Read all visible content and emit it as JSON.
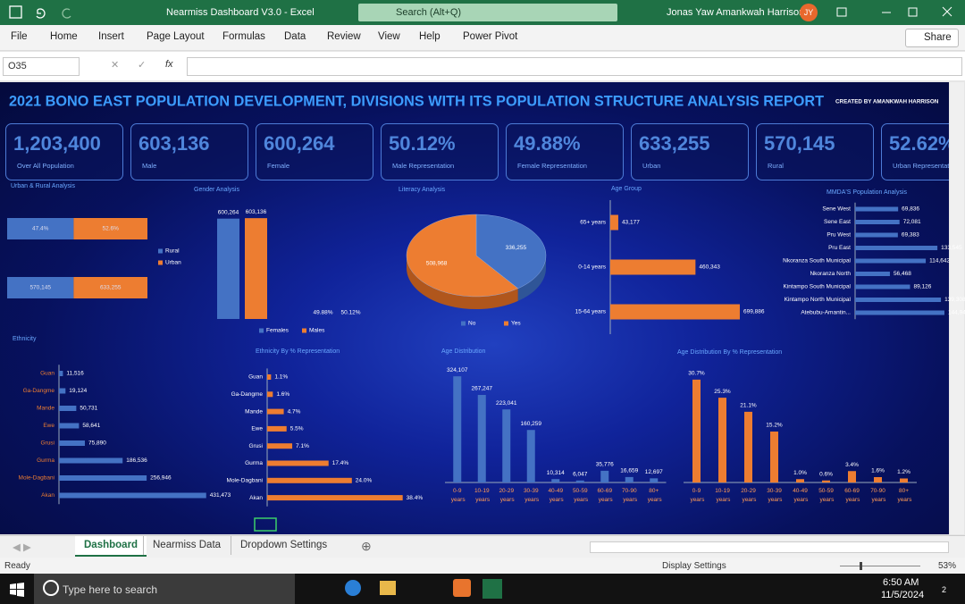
{
  "window": {
    "title": "Nearmiss Dashboard V3.0  -  Excel",
    "search": "Search (Alt+Q)",
    "user": "Jonas Yaw Amankwah Harrison",
    "initials": "JY"
  },
  "ribbon": {
    "tabs": [
      "File",
      "Home",
      "Insert",
      "Page Layout",
      "Formulas",
      "Data",
      "Review",
      "View",
      "Help",
      "Power Pivot"
    ],
    "share": "Share"
  },
  "formula_bar": {
    "name_box": "O35",
    "fx": "fx"
  },
  "dashboard": {
    "title": "2021 BONO EAST POPULATION DEVELOPMENT, DIVISIONS WITH ITS POPULATION STRUCTURE ANALYSIS REPORT",
    "credit": "CREATED BY AMANKWAH HARRISON",
    "kpis": [
      {
        "value": "1,203,400",
        "label": "Over All Population"
      },
      {
        "value": "603,136",
        "label": "Male"
      },
      {
        "value": "600,264",
        "label": "Female"
      },
      {
        "value": "50.12%",
        "label": "Male Representation"
      },
      {
        "value": "49.88%",
        "label": "Female Representation"
      },
      {
        "value": "633,255",
        "label": "Urban"
      },
      {
        "value": "570,145",
        "label": "Rural"
      },
      {
        "value": "52.62%",
        "label": "Urban  Representation"
      }
    ]
  },
  "chart_data": [
    {
      "type": "stacked_bar",
      "title": "Urban & Rural Analysis",
      "categories": [
        null,
        null
      ],
      "series": [
        {
          "name": "Rural",
          "color": "#4472c4",
          "values": [
            47.4,
            570145
          ],
          "value_labels": [
            "47.4%",
            "570,145"
          ]
        },
        {
          "name": "Urban",
          "color": "#ed7d31",
          "values": [
            52.6,
            633255
          ],
          "value_labels": [
            "52.6%",
            "633,255"
          ]
        }
      ]
    },
    {
      "type": "column",
      "title": "Gender Analysis",
      "categories": [
        null,
        null
      ],
      "ylim": [
        0,
        620000
      ],
      "series": [
        {
          "name": "Females",
          "color": "#4472c4",
          "values": [
            600264,
            49.88
          ],
          "value_labels": [
            "600,264",
            "49.88%"
          ]
        },
        {
          "name": "Males",
          "color": "#ed7d31",
          "values": [
            603136,
            50.12
          ],
          "value_labels": [
            "603,136",
            "50.12%"
          ]
        }
      ]
    },
    {
      "type": "pie",
      "title": "Literacy Analysis",
      "categories": [
        "No",
        "Yes"
      ],
      "values": [
        336255,
        508968
      ],
      "value_labels": [
        "336,255",
        "508,968"
      ],
      "colors": [
        "#4472c4",
        "#ed7d31"
      ]
    },
    {
      "type": "bar",
      "title": "Age Group",
      "categories": [
        "65+ years",
        "0-14 years",
        "15-64 years"
      ],
      "values": [
        43177,
        460343,
        699886
      ],
      "value_labels": [
        "43,177",
        "460,343",
        "699,886"
      ],
      "color": "#ed7d31",
      "xlim": [
        0,
        700000
      ]
    },
    {
      "type": "bar",
      "title": "MMDA'S Population Analysis",
      "categories": [
        "Sene West",
        "Sene East",
        "Pru West",
        "Pru East",
        "Nkoranza South Municipal",
        "Nkoranza North",
        "Kintampo South Municipal",
        "Kintampo North Municipal",
        "Atebubu-Amantin..."
      ],
      "values": [
        69836,
        72081,
        69383,
        133545,
        114642,
        56468,
        89126,
        139308,
        144947
      ],
      "value_labels": [
        "69,836",
        "72,081",
        "69,383",
        "133,545",
        "114,642",
        "56,468",
        "89,126",
        "139,308",
        "144,947"
      ],
      "color": "#4472c4",
      "xlim": [
        0,
        145000
      ]
    },
    {
      "type": "bar",
      "title": "Ethnicity",
      "categories": [
        "Guan",
        "Ga-Dangme",
        "Mande",
        "Ewe",
        "Grusi",
        "Gurma",
        "Mole-Dagbani",
        "Akan"
      ],
      "values": [
        11516,
        19124,
        50731,
        58641,
        75890,
        186536,
        256946,
        431473
      ],
      "value_labels": [
        "11,516",
        "19,124",
        "50,731",
        "58,641",
        "75,890",
        "186,536",
        "256,946",
        "431,473"
      ],
      "color": "#4472c4",
      "xlim": [
        0,
        440000
      ]
    },
    {
      "type": "bar",
      "title": "Ethnicity By % Representation",
      "categories": [
        "Guan",
        "Ga-Dangme",
        "Mande",
        "Ewe",
        "Grusi",
        "Gurma",
        "Mole-Dagbani",
        "Akan"
      ],
      "values": [
        1.1,
        1.6,
        4.7,
        5.5,
        7.1,
        17.4,
        24.0,
        38.4
      ],
      "value_labels": [
        "1.1%",
        "1.6%",
        "4.7%",
        "5.5%",
        "7.1%",
        "17.4%",
        "24.0%",
        "38.4%"
      ],
      "color": "#ed7d31",
      "xlim": [
        0,
        40
      ]
    },
    {
      "type": "column",
      "title": "Age Distribution",
      "categories": [
        "0-9 years",
        "10-19 years",
        "20-29 years",
        "30-39 years",
        "40-49 years",
        "50-59 years",
        "60-69 years",
        "70-90 years",
        "80+ years"
      ],
      "values": [
        324107,
        267247,
        223041,
        160259,
        10314,
        6047,
        35776,
        16659,
        12697
      ],
      "value_labels": [
        "324,107",
        "267,247",
        "223,041",
        "160,259",
        "10,314",
        "6,047",
        "35,776",
        "16,659",
        "12,697"
      ],
      "color": "#4472c4",
      "ylim": [
        0,
        330000
      ]
    },
    {
      "type": "column",
      "title": "Age Distribution By % Representation",
      "categories": [
        "0-9 years",
        "10-19 years",
        "20-29 years",
        "30-39 years",
        "40-49 years",
        "50-59 years",
        "60-69 years",
        "70-90 years",
        "80+ years"
      ],
      "values": [
        30.7,
        25.3,
        21.1,
        15.2,
        1.0,
        0.6,
        3.4,
        1.6,
        1.2
      ],
      "value_labels": [
        "30.7%",
        "25.3%",
        "21.1%",
        "15.2%",
        "1.0%",
        "0.6%",
        "3.4%",
        "1.6%",
        "1.2%"
      ],
      "color": "#ed7d31",
      "ylim": [
        0,
        32
      ]
    }
  ],
  "sheet_tabs": {
    "tabs": [
      "Dashboard",
      "Nearmiss Data",
      "Dropdown Settings"
    ],
    "active": 0
  },
  "status_bar": {
    "status": "Ready",
    "display_settings": "Display Settings",
    "zoom": "53%"
  },
  "taskbar": {
    "search": "Type here to search",
    "time": "6:50 AM",
    "date": "11/5/2024",
    "notifications": "2"
  }
}
